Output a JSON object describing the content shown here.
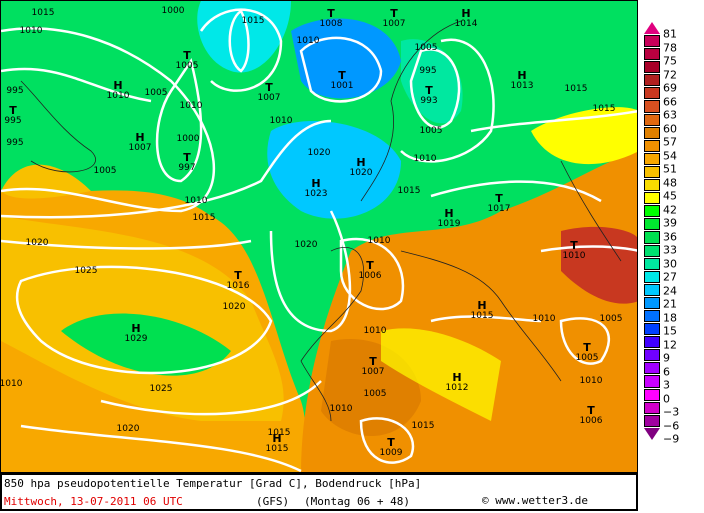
{
  "caption": {
    "title": "850 hpa pseudopotentielle Temperatur [Grad C], Bodendruck [hPa]",
    "date": "Mittwoch, 13-07-2011  06 UTC",
    "model": "(GFS)",
    "run": "(Montag 06 + 48)",
    "copyright": "© www.wetter3.de"
  },
  "legend": {
    "ticks": [
      "81",
      "78",
      "75",
      "72",
      "69",
      "66",
      "63",
      "60",
      "57",
      "54",
      "51",
      "48",
      "45",
      "42",
      "39",
      "36",
      "33",
      "30",
      "27",
      "24",
      "21",
      "18",
      "15",
      "12",
      "9",
      "6",
      "3",
      "0",
      "−3",
      "−6",
      "−9"
    ],
    "colors": [
      "#c8005a",
      "#b80040",
      "#a80028",
      "#b02020",
      "#c83820",
      "#d85020",
      "#e06810",
      "#e08000",
      "#f09000",
      "#f8a800",
      "#f8c000",
      "#f8dc00",
      "#ffff00",
      "#00ff00",
      "#00e830",
      "#00e050",
      "#00e070",
      "#00e8a0",
      "#00e8e8",
      "#00c8ff",
      "#0098ff",
      "#0070ff",
      "#0040ff",
      "#4000ff",
      "#7000ff",
      "#a000ff",
      "#c800ff",
      "#ff00ff",
      "#d000c8",
      "#a000a0"
    ],
    "top_arrow_color": "#e0007f",
    "bottom_arrow_color": "#800080"
  },
  "pressure_systems": [
    {
      "type": "T",
      "value": "1008"
    },
    {
      "type": "T",
      "value": "1007"
    },
    {
      "type": "H",
      "value": "1014"
    },
    {
      "type": "H",
      "value": "1010"
    },
    {
      "type": "T",
      "value": "1005"
    },
    {
      "type": "T",
      "value": "1007"
    },
    {
      "type": "T",
      "value": "1001"
    },
    {
      "type": "T",
      "value": "993"
    },
    {
      "type": "H",
      "value": "1013"
    },
    {
      "type": "H",
      "value": "1007"
    },
    {
      "type": "T",
      "value": "997"
    },
    {
      "type": "T",
      "value": "995"
    },
    {
      "type": "H",
      "value": "1020"
    },
    {
      "type": "H",
      "value": "1023"
    },
    {
      "type": "T",
      "value": "1017"
    },
    {
      "type": "H",
      "value": "1019"
    },
    {
      "type": "T",
      "value": "1010"
    },
    {
      "type": "T",
      "value": "1006"
    },
    {
      "type": "T",
      "value": "1016"
    },
    {
      "type": "H",
      "value": "1015"
    },
    {
      "type": "H",
      "value": "1029"
    },
    {
      "type": "T",
      "value": "1005"
    },
    {
      "type": "T",
      "value": "1007"
    },
    {
      "type": "H",
      "value": "1012"
    },
    {
      "type": "T",
      "value": "1006"
    },
    {
      "type": "T",
      "value": "1009"
    },
    {
      "type": "H",
      "value": "1015"
    }
  ],
  "isobar_labels": [
    "1015",
    "1010",
    "1000",
    "1015",
    "1005",
    "1010",
    "995",
    "995",
    "1005",
    "1000",
    "1010",
    "1005",
    "1015",
    "1020",
    "1025",
    "1020",
    "1025",
    "1020",
    "1015",
    "1010",
    "1020",
    "1010",
    "1015",
    "1010",
    "1010",
    "1005",
    "1015",
    "1010",
    "1015",
    "1020",
    "1010",
    "1005",
    "1010",
    "1010",
    "995",
    "1015",
    "1010",
    "1005"
  ]
}
